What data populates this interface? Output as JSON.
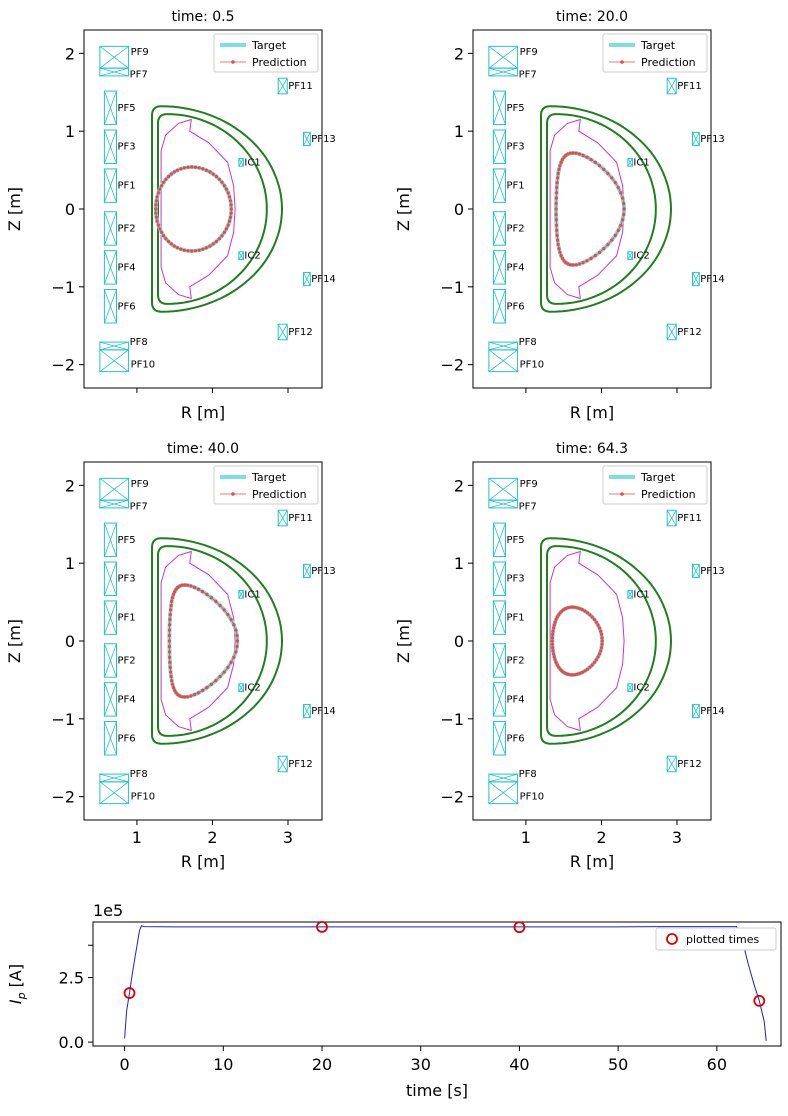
{
  "colors": {
    "target": "#7fdfe0",
    "prediction": "#e84a4a",
    "wall": "#1f7f1f",
    "limiter": "#cc33cc",
    "coil": "#22c4c8",
    "ip_line": "#2020cc",
    "marker": "#dd0000"
  },
  "chart_data": [
    {
      "type": "scatter",
      "title": "time: 0.5",
      "xlabel": "R [m]",
      "ylabel": "Z [m]",
      "xlim": [
        0.3,
        3.45
      ],
      "ylim": [
        -2.3,
        2.3
      ],
      "x_ticks": [
        "1",
        "2",
        "3"
      ],
      "y_ticks": [
        "−2",
        "−1",
        "0",
        "1",
        "2"
      ],
      "show_xticklabels": false,
      "show_yticklabels": true,
      "legend": [
        "Target",
        "Prediction"
      ],
      "shape": {
        "r0": 1.75,
        "a": 0.5,
        "kappa": 1.08,
        "delta": 0.05
      },
      "coils": [
        "PF1",
        "PF2",
        "PF3",
        "PF4",
        "PF5",
        "PF6",
        "PF7",
        "PF8",
        "PF9",
        "PF10",
        "PF11",
        "PF12",
        "PF13",
        "PF14",
        "IC1",
        "IC2"
      ]
    },
    {
      "type": "scatter",
      "title": "time: 20.0",
      "xlabel": "R [m]",
      "ylabel": "Z [m]",
      "xlim": [
        0.3,
        3.45
      ],
      "ylim": [
        -2.3,
        2.3
      ],
      "x_ticks": [
        "1",
        "2",
        "3"
      ],
      "y_ticks": [
        "−2",
        "−1",
        "0",
        "1",
        "2"
      ],
      "show_xticklabels": false,
      "show_yticklabels": true,
      "legend": [
        "Target",
        "Prediction"
      ],
      "shape": {
        "r0": 1.85,
        "a": 0.45,
        "kappa": 1.6,
        "delta": 0.5
      },
      "coils": [
        "PF1",
        "PF2",
        "PF3",
        "PF4",
        "PF5",
        "PF6",
        "PF7",
        "PF8",
        "PF9",
        "PF10",
        "PF11",
        "PF12",
        "PF13",
        "PF14",
        "IC1",
        "IC2"
      ]
    },
    {
      "type": "scatter",
      "title": "time: 40.0",
      "xlabel": "R [m]",
      "ylabel": "Z [m]",
      "xlim": [
        0.3,
        3.45
      ],
      "ylim": [
        -2.3,
        2.3
      ],
      "x_ticks": [
        "1",
        "2",
        "3"
      ],
      "y_ticks": [
        "−2",
        "−1",
        "0",
        "1",
        "2"
      ],
      "show_xticklabels": true,
      "show_yticklabels": true,
      "legend": [
        "Target",
        "Prediction"
      ],
      "shape": {
        "r0": 1.88,
        "a": 0.45,
        "kappa": 1.6,
        "delta": 0.55
      },
      "coils": [
        "PF1",
        "PF2",
        "PF3",
        "PF4",
        "PF5",
        "PF6",
        "PF7",
        "PF8",
        "PF9",
        "PF10",
        "PF11",
        "PF12",
        "PF13",
        "PF14",
        "IC1",
        "IC2"
      ]
    },
    {
      "type": "scatter",
      "title": "time: 64.3",
      "xlabel": "R [m]",
      "ylabel": "Z [m]",
      "xlim": [
        0.3,
        3.45
      ],
      "ylim": [
        -2.3,
        2.3
      ],
      "x_ticks": [
        "1",
        "2",
        "3"
      ],
      "y_ticks": [
        "−2",
        "−1",
        "0",
        "1",
        "2"
      ],
      "show_xticklabels": true,
      "show_yticklabels": true,
      "legend": [
        "Target",
        "Prediction"
      ],
      "shape": {
        "r0": 1.68,
        "a": 0.33,
        "kappa": 1.32,
        "delta": 0.2
      },
      "coils": [
        "PF1",
        "PF2",
        "PF3",
        "PF4",
        "PF5",
        "PF6",
        "PF7",
        "PF8",
        "PF9",
        "PF10",
        "PF11",
        "PF12",
        "PF13",
        "PF14",
        "IC1",
        "IC2"
      ]
    },
    {
      "type": "line",
      "title": "",
      "xlabel": "time [s]",
      "ylabel": "I_p [A]",
      "ylabel_main": "I",
      "ylabel_sub": "p",
      "ylabel_rest": " [A]",
      "multiplier": "1e5",
      "xlim": [
        -3.2,
        66.5
      ],
      "ylim": [
        -0.15,
        4.65
      ],
      "x_ticks": [
        0,
        10,
        20,
        30,
        40,
        50,
        60
      ],
      "x_tick_labels": [
        "0",
        "10",
        "20",
        "30",
        "40",
        "50",
        "60"
      ],
      "y_ticks": [
        0,
        2.5
      ],
      "y_tick_labels": [
        "0.0",
        "2.5"
      ],
      "y_tick_extra": 3.75,
      "y_tick_extra_label": "",
      "series": [
        {
          "name": "I_p",
          "x": [
            0,
            0.2,
            0.5,
            0.8,
            1.2,
            1.5,
            1.7,
            2,
            5,
            10,
            20,
            30,
            40,
            50,
            55,
            62,
            62.6,
            63.2,
            63.8,
            64.3,
            64.8,
            65
          ],
          "y": [
            0.15,
            1.2,
            1.9,
            2.7,
            3.6,
            4.3,
            4.5,
            4.47,
            4.46,
            4.46,
            4.46,
            4.46,
            4.46,
            4.46,
            4.47,
            4.47,
            3.9,
            3.0,
            2.2,
            1.6,
            0.8,
            0.05
          ]
        }
      ],
      "markers": {
        "name": "plotted times",
        "x": [
          0.5,
          20.0,
          40.0,
          64.3
        ],
        "y": [
          1.9,
          4.46,
          4.45,
          1.6
        ]
      },
      "legend": [
        "plotted times"
      ]
    }
  ]
}
